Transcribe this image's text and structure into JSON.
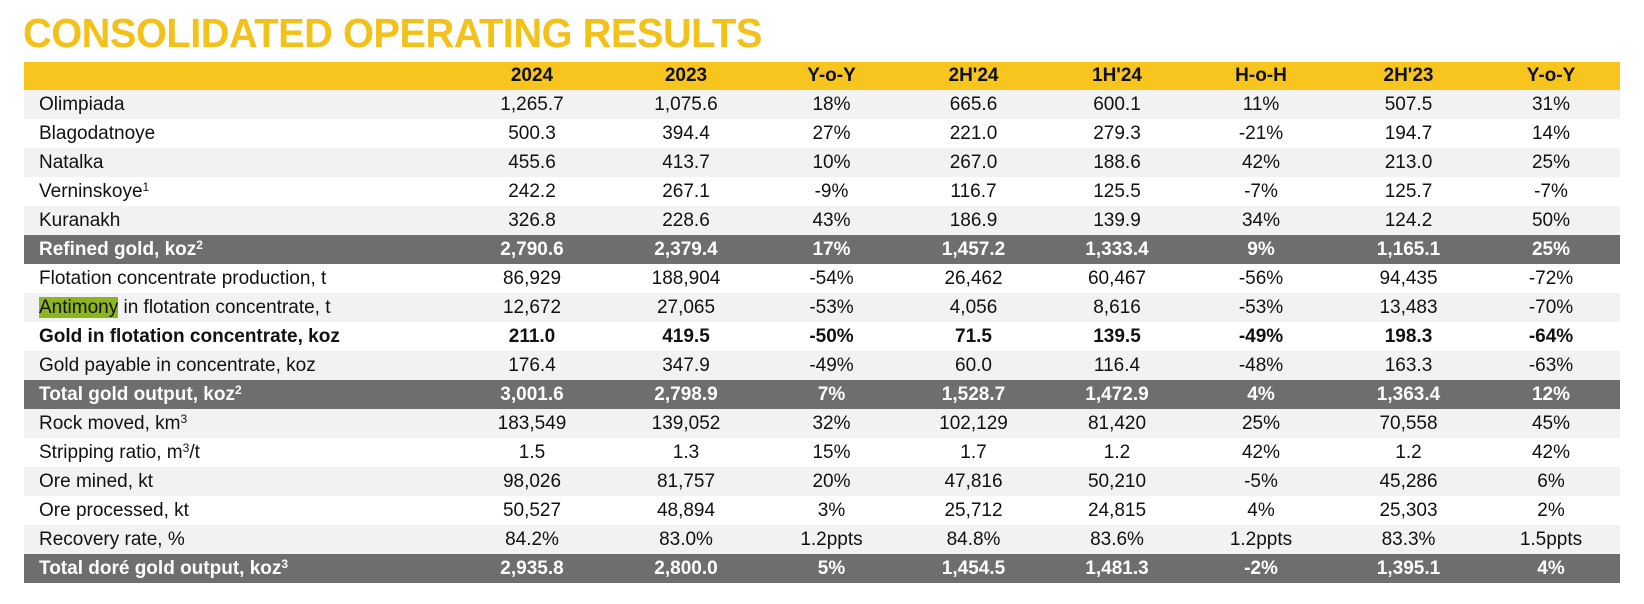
{
  "title": "CONSOLIDATED OPERATING RESULTS",
  "colors": {
    "accent": "#F7C51E",
    "title": "#F2C21B",
    "total_row": "#6E6E6E",
    "highlight": "#8DB51F"
  },
  "headers": [
    "",
    "2024",
    "2023",
    "Y-o-Y",
    "2H'24",
    "1H'24",
    "H-o-H",
    "2H'23",
    "Y-o-Y"
  ],
  "rows": [
    {
      "label": "Olimpiada",
      "type": "normal",
      "values": [
        "1,265.7",
        "1,075.6",
        "18%",
        "665.6",
        "600.1",
        "11%",
        "507.5",
        "31%"
      ]
    },
    {
      "label": "Blagodatnoye",
      "type": "normal",
      "values": [
        "500.3",
        "394.4",
        "27%",
        "221.0",
        "279.3",
        "-21%",
        "194.7",
        "14%"
      ]
    },
    {
      "label": "Natalka",
      "type": "normal",
      "values": [
        "455.6",
        "413.7",
        "10%",
        "267.0",
        "188.6",
        "42%",
        "213.0",
        "25%"
      ]
    },
    {
      "label": "Verninskoye",
      "sup": "1",
      "type": "normal",
      "values": [
        "242.2",
        "267.1",
        "-9%",
        "116.7",
        "125.5",
        "-7%",
        "125.7",
        "-7%"
      ]
    },
    {
      "label": "Kuranakh",
      "type": "normal",
      "values": [
        "326.8",
        "228.6",
        "43%",
        "186.9",
        "139.9",
        "34%",
        "124.2",
        "50%"
      ]
    },
    {
      "label": "Refined gold, koz",
      "sup": "2",
      "type": "total",
      "values": [
        "2,790.6",
        "2,379.4",
        "17%",
        "1,457.2",
        "1,333.4",
        "9%",
        "1,165.1",
        "25%"
      ]
    },
    {
      "label": "Flotation concentrate production, t",
      "type": "normal",
      "values": [
        "86,929",
        "188,904",
        "-54%",
        "26,462",
        "60,467",
        "-56%",
        "94,435",
        "-72%"
      ]
    },
    {
      "highlight": "Antimony",
      "label": " in flotation concentrate, t",
      "type": "normal",
      "values": [
        "12,672",
        "27,065",
        "-53%",
        "4,056",
        "8,616",
        "-53%",
        "13,483",
        "-70%"
      ]
    },
    {
      "label": "Gold in flotation concentrate, koz",
      "type": "bold",
      "values": [
        "211.0",
        "419.5",
        "-50%",
        "71.5",
        "139.5",
        "-49%",
        "198.3",
        "-64%"
      ]
    },
    {
      "label": "Gold payable in concentrate, koz",
      "type": "normal",
      "values": [
        "176.4",
        "347.9",
        "-49%",
        "60.0",
        "116.4",
        "-48%",
        "163.3",
        "-63%"
      ]
    },
    {
      "label": "Total gold output, koz",
      "sup": "2",
      "type": "total",
      "values": [
        "3,001.6",
        "2,798.9",
        "7%",
        "1,528.7",
        "1,472.9",
        "4%",
        "1,363.4",
        "12%"
      ]
    },
    {
      "label": "Rock moved, km",
      "sup": "3",
      "type": "normal",
      "values": [
        "183,549",
        "139,052",
        "32%",
        "102,129",
        "81,420",
        "25%",
        "70,558",
        "45%"
      ]
    },
    {
      "label": "Stripping ratio, m",
      "sup": "3",
      "suffix": "/t",
      "type": "normal",
      "values": [
        "1.5",
        "1.3",
        "15%",
        "1.7",
        "1.2",
        "42%",
        "1.2",
        "42%"
      ]
    },
    {
      "label": "Ore mined, kt",
      "type": "normal",
      "values": [
        "98,026",
        "81,757",
        "20%",
        "47,816",
        "50,210",
        "-5%",
        "45,286",
        "6%"
      ]
    },
    {
      "label": "Ore processed, kt",
      "type": "normal",
      "values": [
        "50,527",
        "48,894",
        "3%",
        "25,712",
        "24,815",
        "4%",
        "25,303",
        "2%"
      ]
    },
    {
      "label": "Recovery rate, %",
      "type": "normal",
      "values": [
        "84.2%",
        "83.0%",
        "1.2ppts",
        "84.8%",
        "83.6%",
        "1.2ppts",
        "83.3%",
        "1.5ppts"
      ]
    },
    {
      "label": "Total doré gold output, koz",
      "sup": "3",
      "type": "total",
      "values": [
        "2,935.8",
        "2,800.0",
        "5%",
        "1,454.5",
        "1,481.3",
        "-2%",
        "1,395.1",
        "4%"
      ]
    }
  ]
}
